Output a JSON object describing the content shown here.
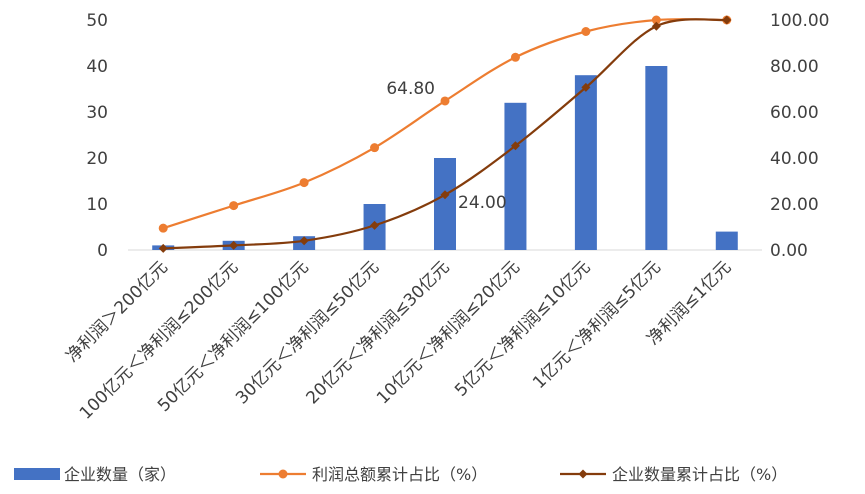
{
  "chart_data": {
    "type": "bar",
    "categories": [
      "净利润＞200亿元",
      "100亿元＜净利润≤200亿元",
      "50亿元＜净利润≤100亿元",
      "30亿元＜净利润≤50亿元",
      "20亿元＜净利润≤30亿元",
      "10亿元＜净利润≤20亿元",
      "5亿元＜净利润≤10亿元",
      "1亿元＜净利润≤5亿元",
      "净利润≤1亿元"
    ],
    "series": [
      {
        "name": "企业数量（家）",
        "type": "bar",
        "axis": "left",
        "color": "#4472C4",
        "values": [
          1,
          2,
          3,
          10,
          20,
          32,
          38,
          40,
          4
        ]
      },
      {
        "name": "利润总额累计占比（%）",
        "type": "line",
        "axis": "right",
        "color": "#ED7D31",
        "values": [
          9.5,
          19.3,
          29.3,
          44.5,
          64.8,
          83.8,
          95.0,
          100.0,
          100.0
        ]
      },
      {
        "name": "企业数量累计占比（%）",
        "type": "line",
        "axis": "right",
        "color": "#843C0C",
        "values": [
          0.7,
          2.0,
          4.0,
          10.7,
          24.0,
          45.3,
          70.7,
          97.3,
          100.0
        ]
      }
    ],
    "ylim_left": [
      0,
      50
    ],
    "yticks_left": [
      "0",
      "10",
      "20",
      "30",
      "40",
      "50"
    ],
    "ylim_right": [
      0,
      100
    ],
    "yticks_right": [
      "0.00",
      "20.00",
      "40.00",
      "60.00",
      "80.00",
      "100.00"
    ],
    "data_labels": [
      {
        "text": "64.80",
        "series": 1,
        "index": 4
      },
      {
        "text": "24.00",
        "series": 2,
        "index": 4
      }
    ],
    "grid": false,
    "legend": "bottom"
  }
}
